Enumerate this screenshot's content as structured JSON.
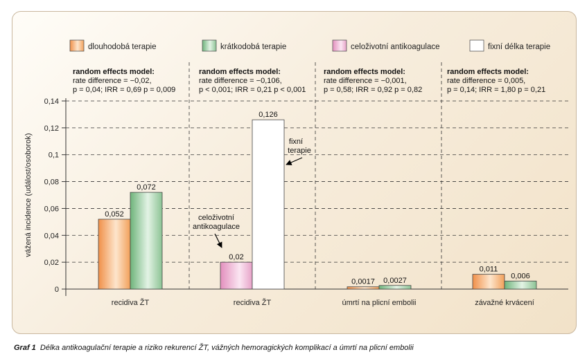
{
  "chart_data": {
    "type": "bar",
    "ylabel": "vážená incidence (událost/osoborok)",
    "ylim": [
      0,
      0.14
    ],
    "yticks": [
      "0",
      "0,02",
      "0,04",
      "0,06",
      "0,08",
      "0,1",
      "0,12",
      "0,14"
    ],
    "grid": true,
    "legend_position": "top",
    "legend": [
      {
        "label": "dlouhodobá terapie",
        "color": "#f2a05a"
      },
      {
        "label": "krátkodobá terapie",
        "color": "#8cc394"
      },
      {
        "label": "celoživotní antikoagulace",
        "color": "#e7a2c8"
      },
      {
        "label": "fixní délka terapie",
        "color": "#ffffff"
      }
    ],
    "groups": [
      {
        "category": "recidiva ŽT",
        "model_title": "random effects model:",
        "model_line1": "rate difference = −0,02,",
        "model_line2": "p = 0,04; IRR = 0,69 p = 0,009",
        "bars": [
          {
            "series": "dlouhodobá terapie",
            "value": 0.052,
            "label": "0,052"
          },
          {
            "series": "krátkodobá terapie",
            "value": 0.072,
            "label": "0,072"
          }
        ]
      },
      {
        "category": "recidiva ŽT",
        "model_title": "random effects model:",
        "model_line1": "rate difference = −0,106,",
        "model_line2": "p < 0,001; IRR = 0,21 p < 0,001",
        "bars": [
          {
            "series": "celoživotní antikoagulace",
            "value": 0.02,
            "label": "0,02"
          },
          {
            "series": "fixní délka terapie",
            "value": 0.126,
            "label": "0,126"
          }
        ]
      },
      {
        "category": "úmrtí na plicní embolii",
        "model_title": "random effects model:",
        "model_line1": "rate difference = −0,001,",
        "model_line2": "p = 0,58; IRR = 0,92 p = 0,82",
        "bars": [
          {
            "series": "dlouhodobá terapie",
            "value": 0.0017,
            "label": "0,0017"
          },
          {
            "series": "krátkodobá terapie",
            "value": 0.0027,
            "label": "0,0027"
          }
        ]
      },
      {
        "category": "závažné krvácení",
        "model_title": "random effects model:",
        "model_line1": "rate difference = 0,005,",
        "model_line2": "p = 0,14; IRR = 1,80 p = 0,21",
        "bars": [
          {
            "series": "dlouhodobá terapie",
            "value": 0.011,
            "label": "0,011"
          },
          {
            "series": "krátkodobá terapie",
            "value": 0.006,
            "label": "0,006"
          }
        ]
      }
    ],
    "annotations": [
      {
        "lines": [
          "celoživotní",
          "antikoagulace"
        ],
        "points_to": "celoživotní antikoagulace"
      },
      {
        "lines": [
          "fixní",
          "terapie"
        ],
        "points_to": "fixní délka terapie"
      }
    ]
  },
  "caption": {
    "label": "Graf 1",
    "text": "Délka antikoagulační terapie a riziko rekurencí ŽT, vážných hemoragických komplikací a úmrtí na plicní embolii"
  }
}
